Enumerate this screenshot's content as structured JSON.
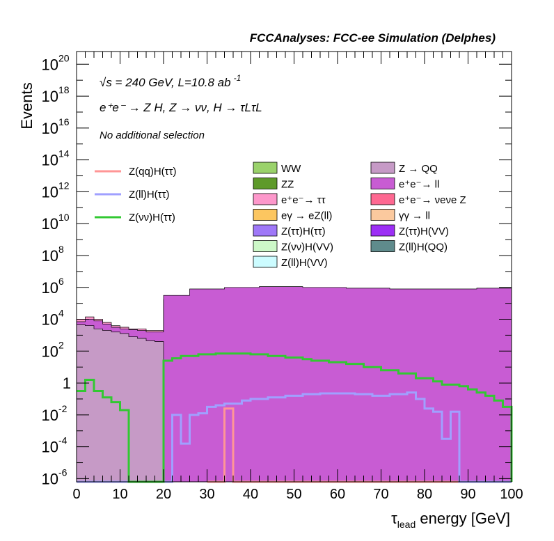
{
  "chart_data": {
    "type": "area",
    "title": "FCCAnalyses: FCC-ee Simulation (Delphes)",
    "xlabel_main": "τ",
    "xlabel_sub": "lead",
    "xlabel_rest": " energy [GeV]",
    "ylabel": "Events",
    "log_y": true,
    "xlim": [
      0,
      100
    ],
    "ylim_exp": [
      -6.2,
      20.8
    ],
    "x_ticks": [
      0,
      10,
      20,
      30,
      40,
      50,
      60,
      70,
      80,
      90,
      100
    ],
    "y_ticks": [
      {
        "exp": -6,
        "base": "10",
        "sup": "-6"
      },
      {
        "exp": -4,
        "base": "10",
        "sup": "-4"
      },
      {
        "exp": -2,
        "base": "10",
        "sup": "-2"
      },
      {
        "exp": 0,
        "base": "1",
        "sup": ""
      },
      {
        "exp": 2,
        "base": "10",
        "sup": "2"
      },
      {
        "exp": 4,
        "base": "10",
        "sup": "4"
      },
      {
        "exp": 6,
        "base": "10",
        "sup": "6"
      },
      {
        "exp": 8,
        "base": "10",
        "sup": "8"
      },
      {
        "exp": 10,
        "base": "10",
        "sup": "10"
      },
      {
        "exp": 12,
        "base": "10",
        "sup": "12"
      },
      {
        "exp": 14,
        "base": "10",
        "sup": "14"
      },
      {
        "exp": 16,
        "base": "10",
        "sup": "16"
      },
      {
        "exp": 18,
        "base": "10",
        "sup": "18"
      },
      {
        "exp": 20,
        "base": "10",
        "sup": "20"
      }
    ],
    "annotations": {
      "energy": "√s = 240 GeV, L=10.8 ab",
      "lumi_sup": "-1",
      "process": "e⁺e⁻ → Z H, Z → νν, H → τLτL",
      "selection": "No additional selection"
    },
    "stack_envelopes": [
      {
        "name": "Z(ll)H(QQ)",
        "color": "#5f8b8c",
        "x": [
          34,
          36,
          38,
          46,
          48,
          54,
          56,
          70,
          72
        ],
        "y_exp": [
          -1.7,
          -6.2,
          -3.7,
          -6.2,
          -3.8,
          -6.2,
          -3.6,
          -6.2,
          -4.3
        ]
      },
      {
        "name": "Z(ττ)H(VV)",
        "color": "#9c2ff5",
        "x": [
          6,
          8,
          20,
          22,
          26,
          28,
          32,
          36,
          40,
          46,
          50,
          54,
          58,
          62,
          66,
          70,
          74,
          76
        ],
        "y_exp": [
          -2.5,
          -6.2,
          -2.4,
          -2.7,
          -1.6,
          -2.0,
          -1.4,
          -1.2,
          -1.5,
          -1.3,
          -1.1,
          -1.4,
          -1.2,
          -1.2,
          -1.2,
          -1.2,
          -2.3,
          -6.2
        ]
      },
      {
        "name": "Z(ll)H(VV)",
        "color": "#ccfcff",
        "x": [
          20,
          30,
          34,
          38,
          46,
          54,
          62,
          66,
          70,
          76,
          78,
          82,
          86,
          90
        ],
        "y_exp": [
          -1.6,
          -1.3,
          -1.0,
          -0.7,
          -0.4,
          -0.3,
          -0.4,
          -0.6,
          -0.9,
          -1.3,
          -1.7,
          -2.5,
          -4.5,
          -6.2
        ]
      },
      {
        "name": "Z(νν)H(VV)",
        "color": "#cdf8c8",
        "x": [
          6,
          8,
          20,
          22,
          24,
          28,
          34,
          40,
          44,
          48,
          52,
          54,
          58,
          64,
          68,
          72,
          74,
          78,
          80,
          84,
          88,
          90,
          92,
          94,
          96,
          98,
          100
        ],
        "y_exp": [
          -1.4,
          -6.2,
          1.4,
          1.5,
          1.6,
          1.7,
          1.8,
          1.8,
          1.75,
          1.7,
          1.6,
          1.5,
          1.4,
          1.2,
          1.0,
          0.8,
          0.6,
          0.4,
          0.2,
          -0.1,
          -0.2,
          -0.4,
          -0.5,
          -0.7,
          -1.0,
          -1.5,
          -6.2
        ]
      },
      {
        "name": "e⁺e⁻→ νeνe Z",
        "color": "#fe6891",
        "x": [
          20,
          24,
          28,
          32,
          40,
          48,
          54,
          58,
          64,
          70,
          76,
          82,
          88,
          94,
          98,
          100
        ],
        "y_exp": [
          2.15,
          2.2,
          2.3,
          2.4,
          2.5,
          2.6,
          2.7,
          2.8,
          2.8,
          2.8,
          2.7,
          2.6,
          2.4,
          2.0,
          1.8,
          1.6
        ]
      },
      {
        "name": "ZZ",
        "color": "#5e9a2a",
        "x": [
          20,
          30,
          40,
          46,
          50,
          56,
          62,
          66,
          70,
          74,
          78,
          82,
          88,
          94,
          98,
          100
        ],
        "y_exp": [
          3.1,
          3.15,
          3.2,
          3.3,
          3.5,
          3.7,
          3.85,
          3.9,
          3.9,
          3.85,
          3.75,
          3.7,
          3.6,
          3.4,
          3.3,
          3.2
        ]
      },
      {
        "name": "e⁺e⁻→ ττ",
        "color": "#fd98cb",
        "x": [
          0,
          2,
          4,
          6,
          8,
          10,
          12,
          14,
          16,
          18,
          20,
          100
        ],
        "y_exp": [
          4.0,
          4.15,
          4.0,
          3.8,
          3.6,
          3.5,
          3.4,
          3.4,
          3.3,
          3.3,
          4.2,
          3.7
        ]
      },
      {
        "name": "eγ → eZ(ll)",
        "color": "#fcc660",
        "x": [
          20,
          30,
          40,
          50,
          60,
          70,
          80,
          90,
          100
        ],
        "y_exp": [
          4.9,
          5.0,
          5.1,
          5.1,
          5.0,
          4.9,
          4.8,
          4.6,
          4.2
        ]
      },
      {
        "name": "γγ → ll",
        "color": "#fbc99e",
        "x": [
          20,
          30,
          40,
          50,
          60,
          70,
          80,
          90,
          100
        ],
        "y_exp": [
          5.2,
          5.5,
          5.5,
          5.4,
          5.3,
          5.2,
          5.0,
          4.8,
          4.6
        ]
      },
      {
        "name": "WW",
        "color": "#9ad26b",
        "x": [
          20,
          30,
          40,
          50,
          60,
          70,
          80,
          90,
          100
        ],
        "y_exp": [
          5.25,
          5.6,
          5.7,
          5.6,
          5.5,
          5.4,
          5.3,
          5.1,
          4.8
        ]
      },
      {
        "name": "e⁺e⁻→ ll",
        "color": "#c85cd3",
        "x": [
          0,
          2,
          4,
          6,
          8,
          10,
          12,
          14,
          16,
          18,
          20,
          26,
          34,
          42,
          52,
          62,
          72,
          82,
          92,
          100
        ],
        "y_exp": [
          3.85,
          4.0,
          3.9,
          3.7,
          3.5,
          3.4,
          3.35,
          3.3,
          3.2,
          3.2,
          5.5,
          5.9,
          6.0,
          6.05,
          6.0,
          5.95,
          5.9,
          5.9,
          5.95,
          6.0
        ]
      },
      {
        "name": "Z → QQ",
        "color": "#c69ac6",
        "x": [
          0,
          2,
          4,
          6,
          8,
          10,
          12,
          14,
          16,
          18,
          20
        ],
        "y_exp": [
          3.65,
          3.6,
          3.4,
          3.3,
          3.2,
          3.1,
          2.9,
          2.8,
          2.65,
          2.6,
          -6.2
        ]
      }
    ],
    "overlay_lines": [
      {
        "name": "Z(qq)H(ττ)",
        "color": "#ff9696",
        "x": [
          30,
          32,
          34,
          36,
          38,
          100
        ],
        "y_exp": [
          -6.2,
          -6.2,
          -1.6,
          -6.2,
          -6.2,
          -6.2
        ]
      },
      {
        "name": "Z(ll)H(ττ)",
        "color": "#a0a0ff",
        "x": [
          0,
          20,
          22,
          24,
          26,
          28,
          30,
          32,
          34,
          36,
          38,
          40,
          44,
          48,
          52,
          56,
          60,
          64,
          68,
          72,
          76,
          78,
          80,
          82,
          84,
          86,
          88,
          100
        ],
        "y_exp": [
          -6.2,
          -6.2,
          -2.0,
          -3.8,
          -2.0,
          -1.9,
          -1.5,
          -1.4,
          -1.3,
          -1.3,
          -1.1,
          -1.0,
          -0.9,
          -0.8,
          -0.7,
          -0.65,
          -0.65,
          -0.7,
          -0.8,
          -0.7,
          -0.6,
          -1.0,
          -1.6,
          -1.8,
          -3.5,
          -1.8,
          -6.2,
          -6.2
        ]
      },
      {
        "name": "Z(νν)H(ττ)",
        "color": "#32c832",
        "x": [
          0,
          2,
          4,
          6,
          8,
          10,
          12,
          14,
          20,
          22,
          24,
          28,
          32,
          36,
          40,
          44,
          48,
          52,
          54,
          58,
          62,
          66,
          70,
          74,
          78,
          82,
          84,
          88,
          90,
          92,
          94,
          96,
          98,
          100
        ],
        "y_exp": [
          -0.5,
          0.2,
          -0.5,
          -0.9,
          -1.2,
          -1.7,
          -6.2,
          -6.2,
          1.4,
          1.55,
          1.7,
          1.8,
          1.85,
          1.85,
          1.8,
          1.7,
          1.6,
          1.5,
          1.4,
          1.3,
          1.2,
          1.0,
          0.8,
          0.6,
          0.3,
          0.1,
          -0.1,
          -0.2,
          -0.4,
          -0.6,
          -0.8,
          -1.1,
          -1.5,
          -6.2
        ]
      }
    ],
    "legend_left": [
      {
        "label": "Z(qq)H(ττ)",
        "color": "#ff9696"
      },
      {
        "label": "Z(ll)H(ττ)",
        "color": "#a0a0ff"
      },
      {
        "label": "Z(νν)H(ττ)",
        "color": "#32c832"
      }
    ],
    "legend_mid": [
      {
        "label": "WW",
        "color": "#9ad26b"
      },
      {
        "label": "ZZ",
        "color": "#5e9a2a"
      },
      {
        "label": "e⁺e⁻→ ττ",
        "color": "#fd98cb"
      },
      {
        "label": "eγ → eZ(ll)",
        "color": "#fcc660"
      },
      {
        "label": "Z(ττ)H(ττ)",
        "color": "#9f78f8"
      },
      {
        "label": "Z(νν)H(VV)",
        "color": "#cdf8c8"
      },
      {
        "label": "Z(ll)H(VV)",
        "color": "#ccfcff"
      }
    ],
    "legend_right": [
      {
        "label": "Z → QQ",
        "color": "#c69ac6"
      },
      {
        "label": "e⁺e⁻→ ll",
        "color": "#c85cd3"
      },
      {
        "label": "e⁺e⁻→ νeνe Z",
        "color": "#fe6891"
      },
      {
        "label": "γγ → ll",
        "color": "#fbc99e"
      },
      {
        "label": "Z(ττ)H(VV)",
        "color": "#9c2ff5"
      },
      {
        "label": "Z(ll)H(QQ)",
        "color": "#5f8b8c"
      }
    ]
  }
}
